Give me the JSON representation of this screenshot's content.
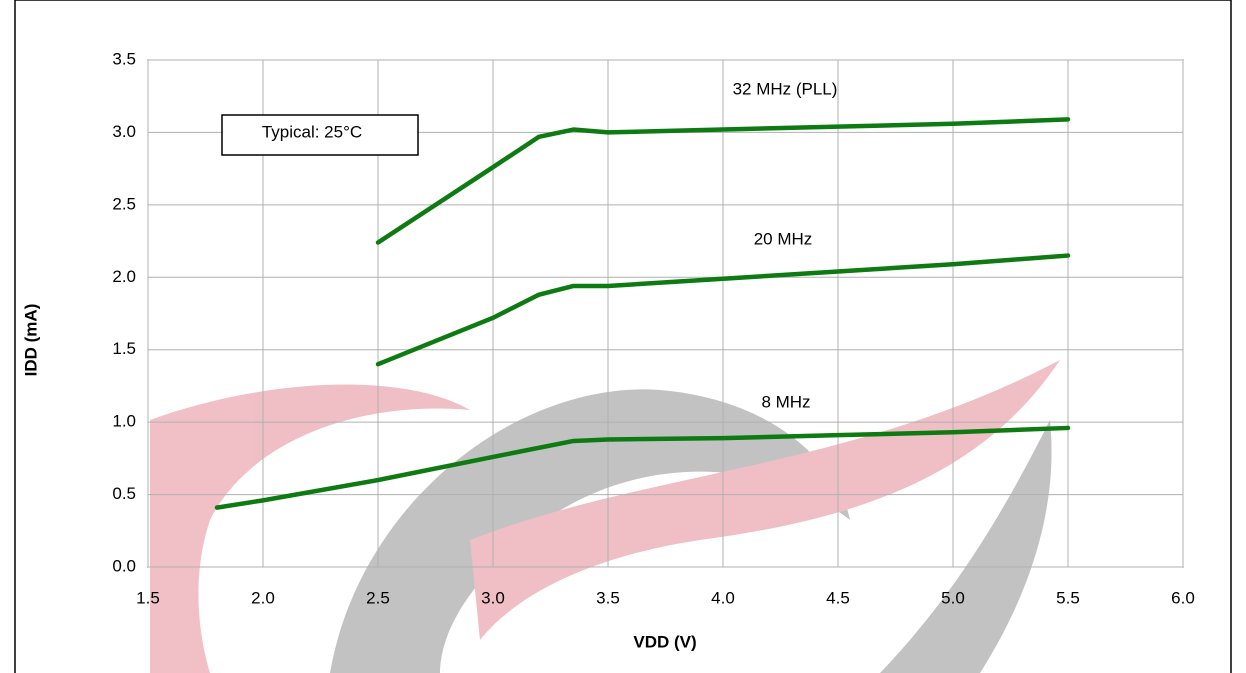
{
  "chart_data": {
    "type": "line",
    "xlabel": "IDD (mA)",
    "x_axis_label": "VDD (V)",
    "annotations": [
      "Typical: 25°C",
      "32 MHz (PLL)",
      "20 MHz",
      "8 MHz"
    ],
    "series": [
      {
        "name": "32 MHz (PLL)",
        "color": "#0e7a12",
        "x": [
          2.5,
          2.75,
          3.0,
          3.2,
          3.35,
          3.5,
          4.0,
          4.5,
          5.0,
          5.5
        ],
        "values": [
          2.24,
          2.5,
          2.76,
          2.97,
          3.02,
          3.0,
          3.02,
          3.04,
          3.06,
          3.09
        ]
      },
      {
        "name": "20 MHz",
        "color": "#0e7a12",
        "x": [
          2.5,
          3.0,
          3.2,
          3.35,
          3.5,
          4.0,
          4.5,
          5.0,
          5.5
        ],
        "values": [
          1.4,
          1.72,
          1.88,
          1.94,
          1.94,
          1.99,
          2.04,
          2.09,
          2.15
        ]
      },
      {
        "name": "8 MHz",
        "color": "#0e7a12",
        "x": [
          1.8,
          2.0,
          2.5,
          3.0,
          3.35,
          3.5,
          4.0,
          4.5,
          5.0,
          5.5
        ],
        "values": [
          0.41,
          0.46,
          0.6,
          0.76,
          0.87,
          0.88,
          0.89,
          0.91,
          0.93,
          0.96
        ]
      }
    ],
    "xlim": [
      1.5,
      6.0
    ],
    "xticks": [
      1.5,
      {
        "value": 2,
        "label": "2.0"
      },
      2.5,
      {
        "value": 3,
        "label": "3.0"
      },
      3.5,
      {
        "value": 4,
        "label": "4.0"
      },
      4.5,
      {
        "value": 5,
        "label": "5.0"
      },
      5.5,
      {
        "value": 6,
        "label": "6.0"
      }
    ],
    "ylim": [
      0,
      3.5
    ],
    "yticks": [
      {
        "value": 0,
        "label": "0.0"
      },
      0.5,
      {
        "value": 1,
        "label": "1.0"
      },
      1.5,
      {
        "value": 2,
        "label": "2.0"
      },
      2.5,
      {
        "value": 3,
        "label": "3.0"
      },
      3.5
    ],
    "grid": true
  }
}
